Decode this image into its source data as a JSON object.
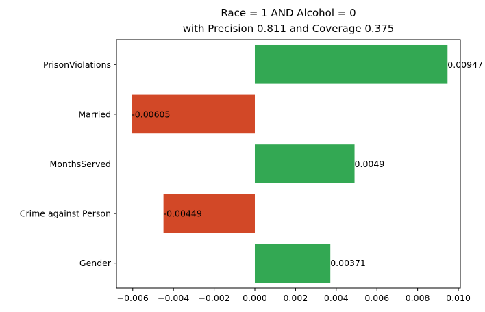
{
  "chart_data": {
    "type": "bar",
    "orientation": "horizontal",
    "title": "Race = 1 AND Alcohol = 0\nwith Precision 0.811 and Coverage 0.375",
    "xlabel": "",
    "ylabel": "",
    "categories": [
      "PrisonViolations",
      "Married",
      "MonthsServed",
      "Crime against Person",
      "Gender"
    ],
    "values": [
      0.00947,
      -0.00605,
      0.0049,
      -0.00449,
      0.00371
    ],
    "data_labels": [
      "0.00947",
      "-0.00605",
      "0.0049",
      "-0.00449",
      "0.00371"
    ],
    "xlim": [
      -0.0068,
      0.0101
    ],
    "xticks": [
      -0.006,
      -0.004,
      -0.002,
      0.0,
      0.002,
      0.004,
      0.006,
      0.008,
      0.01
    ],
    "xtick_labels": [
      "−0.006",
      "−0.004",
      "−0.002",
      "0.000",
      "0.002",
      "0.004",
      "0.006",
      "0.008",
      "0.010"
    ],
    "grid": false,
    "legend": "none",
    "colors": {
      "positive": "#33a853",
      "negative": "#d24827"
    }
  }
}
